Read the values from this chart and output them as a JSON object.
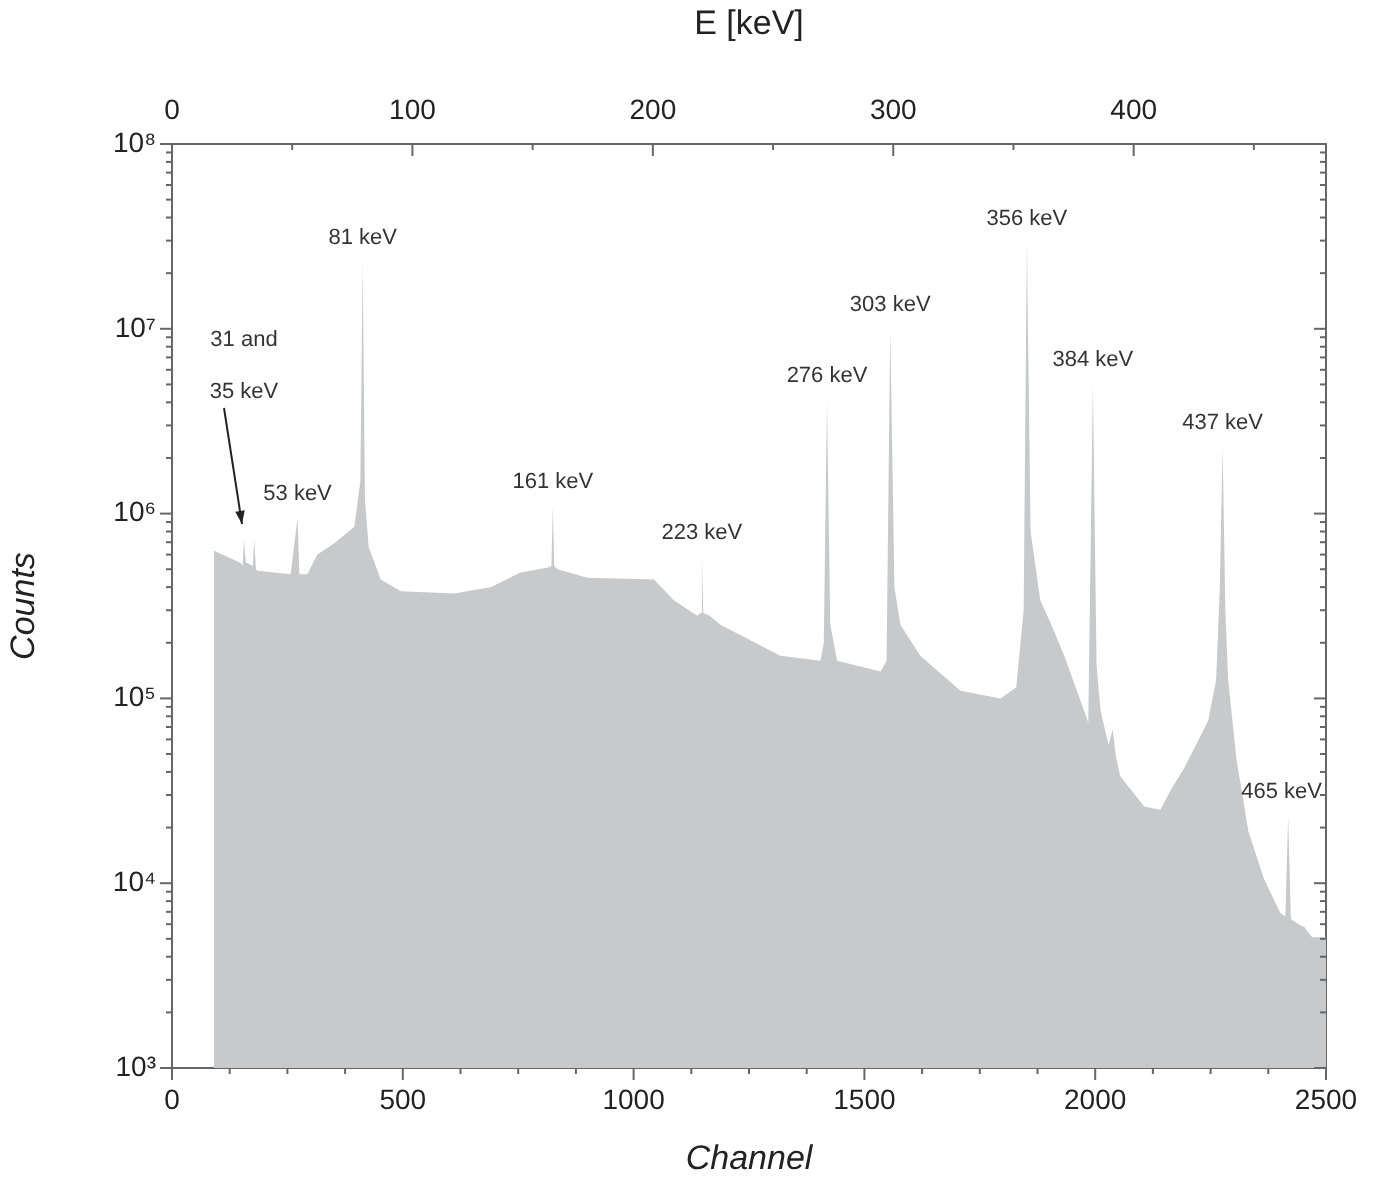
{
  "chart_data": {
    "type": "area",
    "xlabel": "Channel",
    "ylabel": "Counts",
    "x2label": "E [keV]",
    "log": "y",
    "color": "#c8c9cb",
    "x": [
      91,
      149,
      153,
      156,
      160,
      164,
      175,
      178,
      182,
      185,
      257,
      272,
      276,
      283,
      293,
      315,
      351,
      395,
      408,
      413,
      418,
      426,
      452,
      496,
      611,
      690,
      755,
      813,
      822,
      825,
      828,
      835,
      900,
      1044,
      1087,
      1138,
      1145,
      1148,
      1151,
      1165,
      1188,
      1318,
      1405,
      1412,
      1419,
      1426,
      1441,
      1535,
      1548,
      1556,
      1565,
      1578,
      1621,
      1708,
      1795,
      1829,
      1845,
      1852,
      1860,
      1881,
      1905,
      1933,
      1985,
      1995,
      2003,
      2012,
      2029,
      2038,
      2045,
      2054,
      2106,
      2141,
      2167,
      2193,
      2245,
      2262,
      2270,
      2276,
      2282,
      2288,
      2306,
      2332,
      2366,
      2401,
      2412,
      2418,
      2424,
      2440,
      2453,
      2470,
      2500
    ],
    "values": [
      630000,
      540000,
      520000,
      720000,
      540000,
      540000,
      520000,
      720000,
      500000,
      490000,
      470000,
      950000,
      470000,
      470000,
      470000,
      600000,
      690000,
      850000,
      1500000,
      23000000,
      1200000,
      660000,
      440000,
      380000,
      370000,
      400000,
      480000,
      510000,
      520000,
      1100000,
      520000,
      500000,
      450000,
      440000,
      340000,
      280000,
      290000,
      580000,
      290000,
      280000,
      250000,
      170000,
      160000,
      200000,
      4100000,
      250000,
      160000,
      140000,
      160000,
      10000000,
      400000,
      250000,
      170000,
      110000,
      100000,
      115000,
      300000,
      29000000,
      800000,
      340000,
      250000,
      170000,
      74000,
      5000000,
      150000,
      85000,
      56000,
      68000,
      48000,
      38000,
      26000,
      25000,
      33000,
      42000,
      76000,
      126000,
      400000,
      2300000,
      300000,
      126000,
      47000,
      19000,
      10500,
      6900,
      6600,
      23000,
      6400,
      6000,
      5800,
      5100,
      5100
    ],
    "xlim": [
      0,
      2500
    ],
    "xticks": [
      0,
      {
        "value": 125,
        "label": null
      },
      {
        "value": 250,
        "label": null
      },
      {
        "value": 375,
        "label": null
      },
      500,
      {
        "value": 625,
        "label": null
      },
      {
        "value": 750,
        "label": null
      },
      {
        "value": 875,
        "label": null
      },
      1000,
      {
        "value": 1125,
        "label": null
      },
      {
        "value": 1250,
        "label": null
      },
      {
        "value": 1375,
        "label": null
      },
      1500,
      {
        "value": 1625,
        "label": null
      },
      {
        "value": 1750,
        "label": null
      },
      {
        "value": 1875,
        "label": null
      },
      2000,
      {
        "value": 2125,
        "label": null
      },
      {
        "value": 2250,
        "label": null
      },
      {
        "value": 2375,
        "label": null
      },
      2500
    ],
    "x2lim": [
      0,
      480
    ],
    "x2ticks": [
      0,
      {
        "value": 50,
        "label": null
      },
      100,
      {
        "value": 150,
        "label": null
      },
      200,
      {
        "value": 250,
        "label": null
      },
      300,
      {
        "value": 350,
        "label": null
      },
      400,
      {
        "value": 450,
        "label": null
      }
    ],
    "ylim": [
      1000,
      100000000
    ],
    "yticks": [
      {
        "value": 1000,
        "label": "10³"
      },
      {
        "value": 2000,
        "label": null
      },
      {
        "value": 3000,
        "label": null
      },
      {
        "value": 4000,
        "label": null
      },
      {
        "value": 5000,
        "label": null
      },
      {
        "value": 6000,
        "label": null
      },
      {
        "value": 7000,
        "label": null
      },
      {
        "value": 8000,
        "label": null
      },
      {
        "value": 9000,
        "label": null
      },
      {
        "value": 10000,
        "label": "10⁴"
      },
      {
        "value": 20000,
        "label": null
      },
      {
        "value": 30000,
        "label": null
      },
      {
        "value": 40000,
        "label": null
      },
      {
        "value": 50000,
        "label": null
      },
      {
        "value": 60000,
        "label": null
      },
      {
        "value": 70000,
        "label": null
      },
      {
        "value": 80000,
        "label": null
      },
      {
        "value": 90000,
        "label": null
      },
      {
        "value": 100000,
        "label": "10⁵"
      },
      {
        "value": 200000,
        "label": null
      },
      {
        "value": 300000,
        "label": null
      },
      {
        "value": 400000,
        "label": null
      },
      {
        "value": 500000,
        "label": null
      },
      {
        "value": 600000,
        "label": null
      },
      {
        "value": 700000,
        "label": null
      },
      {
        "value": 800000,
        "label": null
      },
      {
        "value": 900000,
        "label": null
      },
      {
        "value": 1000000,
        "label": "10⁶"
      },
      {
        "value": 2000000,
        "label": null
      },
      {
        "value": 3000000,
        "label": null
      },
      {
        "value": 4000000,
        "label": null
      },
      {
        "value": 5000000,
        "label": null
      },
      {
        "value": 6000000,
        "label": null
      },
      {
        "value": 7000000,
        "label": null
      },
      {
        "value": 8000000,
        "label": null
      },
      {
        "value": 9000000,
        "label": null
      },
      {
        "value": 10000000,
        "label": "10⁷"
      },
      {
        "value": 20000000,
        "label": null
      },
      {
        "value": 30000000,
        "label": null
      },
      {
        "value": 40000000,
        "label": null
      },
      {
        "value": 50000000,
        "label": null
      },
      {
        "value": 60000000,
        "label": null
      },
      {
        "value": 70000000,
        "label": null
      },
      {
        "value": 80000000,
        "label": null
      },
      {
        "value": 90000000,
        "label": null
      },
      {
        "value": 100000000,
        "label": "10⁸"
      }
    ],
    "annotations": [
      "31 and",
      "35 keV",
      {
        "text": "53 keV",
        "x": 272,
        "y": 950000
      },
      {
        "text": "81 keV",
        "x": 413,
        "y": 23000000
      },
      {
        "text": "161 keV",
        "x": 825,
        "y": 1100000
      },
      {
        "text": "223 keV",
        "x": 1148,
        "y": 580000
      },
      {
        "text": "276 keV",
        "x": 1419,
        "y": 4100000
      },
      {
        "text": "303 keV",
        "x": 1556,
        "y": 10000000
      },
      {
        "text": "356 keV",
        "x": 1852,
        "y": 29000000
      },
      {
        "text": "384 keV",
        "x": 1995,
        "y": 5000000
      },
      {
        "text": "437 keV",
        "x": 2276,
        "y": 2300000
      },
      {
        "text": "465 keV",
        "x": 2418,
        "y": 23000
      }
    ]
  }
}
